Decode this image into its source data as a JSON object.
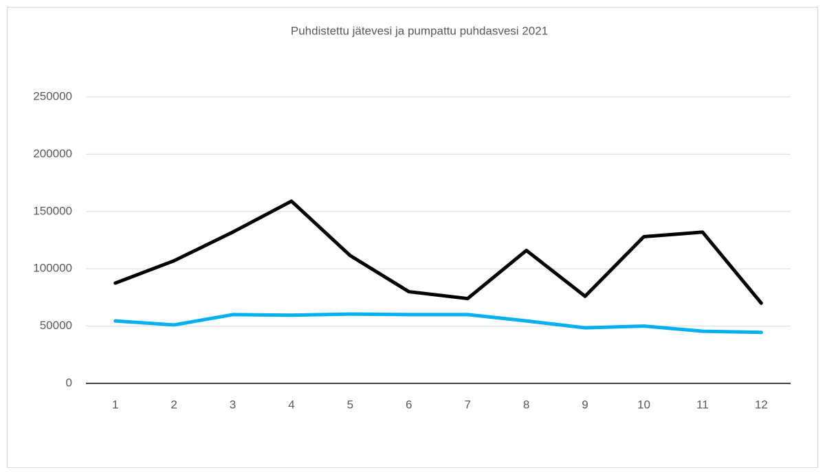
{
  "chart_data": {
    "type": "line",
    "title": "Puhdistettu jätevesi ja pumpattu puhdasvesi 2021",
    "categories": [
      "1",
      "2",
      "3",
      "4",
      "5",
      "6",
      "7",
      "8",
      "9",
      "10",
      "11",
      "12"
    ],
    "series": [
      {
        "color": "#000000",
        "values": [
          87500,
          107000,
          132000,
          159000,
          111500,
          80000,
          74000,
          116000,
          76000,
          128000,
          132000,
          70000
        ]
      },
      {
        "color": "#00b0f0",
        "values": [
          54500,
          51000,
          60000,
          59500,
          60500,
          60000,
          60000,
          54500,
          48500,
          50000,
          45500,
          44500
        ]
      }
    ],
    "ylim": [
      0,
      250000
    ],
    "yticks": [
      0,
      50000,
      100000,
      150000,
      200000,
      250000
    ],
    "grid": true
  }
}
